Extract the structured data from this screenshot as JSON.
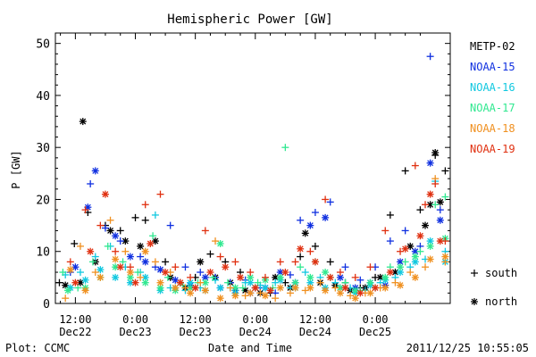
{
  "chart_data": {
    "type": "scatter",
    "title": "Hemispheric Power [GW]",
    "xlabel": "Date and Time",
    "ylabel": "P [GW]",
    "ylim": [
      0,
      52
    ],
    "xlim_hours": [
      -16,
      63
    ],
    "y_ticks": [
      "0",
      "10",
      "20",
      "30",
      "40",
      "50"
    ],
    "x_ticks": [
      {
        "time": "12:00",
        "date": "Dec22"
      },
      {
        "time": "0:00",
        "date": "Dec23"
      },
      {
        "time": "12:00",
        "date": "Dec23"
      },
      {
        "time": "0:00",
        "date": "Dec24"
      },
      {
        "time": "12:00",
        "date": "Dec24"
      },
      {
        "time": "0:00",
        "date": "Dec25"
      }
    ],
    "legend_position": "right",
    "marker_legend": [
      {
        "symbol": "+",
        "label": "south"
      },
      {
        "symbol": "*",
        "label": "north"
      }
    ],
    "series": [
      {
        "name": "METP-02",
        "color": "#000000",
        "south": [
          [
            -15.2,
            4
          ],
          [
            -12.2,
            11.5
          ],
          [
            -9.5,
            17.5
          ],
          [
            -6,
            15
          ],
          [
            -3,
            14
          ],
          [
            0,
            16.5
          ],
          [
            2,
            16
          ],
          [
            6,
            8
          ],
          [
            9,
            4
          ],
          [
            12,
            5
          ],
          [
            15,
            9.5
          ],
          [
            18,
            8
          ],
          [
            21,
            6
          ],
          [
            24,
            3
          ],
          [
            27,
            2
          ],
          [
            30,
            4
          ],
          [
            33,
            9
          ],
          [
            36,
            11
          ],
          [
            39,
            8
          ],
          [
            42,
            4
          ],
          [
            45,
            3
          ],
          [
            48,
            5
          ],
          [
            51,
            17
          ],
          [
            54,
            25.5
          ],
          [
            57,
            18
          ],
          [
            60,
            28.5
          ],
          [
            62,
            25.5
          ]
        ],
        "north": [
          [
            -14,
            3.5
          ],
          [
            -11,
            4
          ],
          [
            -10.5,
            35
          ],
          [
            -8,
            8
          ],
          [
            -5,
            14
          ],
          [
            -2,
            12
          ],
          [
            1,
            11
          ],
          [
            4,
            12
          ],
          [
            7,
            5
          ],
          [
            10,
            3
          ],
          [
            13,
            8
          ],
          [
            16,
            5
          ],
          [
            19,
            4
          ],
          [
            22,
            2.5
          ],
          [
            25,
            2
          ],
          [
            28,
            5
          ],
          [
            31,
            3
          ],
          [
            34,
            13.5
          ],
          [
            37,
            4
          ],
          [
            40,
            3.5
          ],
          [
            43,
            2.5
          ],
          [
            46,
            3
          ],
          [
            49,
            5
          ],
          [
            52,
            6
          ],
          [
            55,
            11
          ],
          [
            58,
            15
          ],
          [
            59,
            19
          ],
          [
            60,
            29
          ],
          [
            61,
            19.5
          ]
        ]
      },
      {
        "name": "NOAA-15",
        "color": "#1030e0",
        "south": [
          [
            -13,
            6
          ],
          [
            -9,
            23
          ],
          [
            -6,
            14.5
          ],
          [
            -3,
            12
          ],
          [
            1,
            9
          ],
          [
            4,
            7
          ],
          [
            7,
            15
          ],
          [
            10,
            7
          ],
          [
            13,
            6
          ],
          [
            16,
            5
          ],
          [
            19,
            4
          ],
          [
            22,
            4.5
          ],
          [
            25,
            3
          ],
          [
            28,
            2
          ],
          [
            31,
            5.5
          ],
          [
            33,
            16
          ],
          [
            36,
            17.5
          ],
          [
            39,
            19.5
          ],
          [
            42,
            7
          ],
          [
            45,
            4.5
          ],
          [
            48,
            7
          ],
          [
            51,
            12
          ],
          [
            54,
            14
          ],
          [
            57,
            11
          ],
          [
            59,
            47.5
          ],
          [
            61,
            18
          ]
        ],
        "north": [
          [
            -12,
            7
          ],
          [
            -9.5,
            18.5
          ],
          [
            -8,
            25.5
          ],
          [
            -4,
            13
          ],
          [
            -1,
            9
          ],
          [
            2,
            8
          ],
          [
            5,
            6.5
          ],
          [
            8,
            4.5
          ],
          [
            11,
            3.5
          ],
          [
            14,
            5
          ],
          [
            17,
            3
          ],
          [
            20,
            2.5
          ],
          [
            23,
            2
          ],
          [
            26,
            3
          ],
          [
            29,
            6
          ],
          [
            32,
            4
          ],
          [
            35,
            15
          ],
          [
            38,
            16.5
          ],
          [
            41,
            5
          ],
          [
            44,
            3
          ],
          [
            47,
            4
          ],
          [
            50,
            3.5
          ],
          [
            53,
            8
          ],
          [
            56,
            10
          ],
          [
            59,
            27
          ],
          [
            61,
            16
          ]
        ]
      },
      {
        "name": "NOAA-16",
        "color": "#10c8e0",
        "south": [
          [
            -14,
            5.5
          ],
          [
            -11,
            6
          ],
          [
            -8,
            9
          ],
          [
            -5,
            11
          ],
          [
            -2,
            7
          ],
          [
            1,
            6
          ],
          [
            4,
            17
          ],
          [
            7,
            3
          ],
          [
            10,
            2.5
          ],
          [
            13,
            3
          ],
          [
            16,
            4.5
          ],
          [
            19,
            3
          ],
          [
            22,
            4
          ],
          [
            25,
            3.5
          ],
          [
            28,
            4
          ],
          [
            31,
            3
          ],
          [
            34,
            6
          ],
          [
            37,
            5
          ],
          [
            40,
            4
          ],
          [
            43,
            3
          ],
          [
            46,
            2.5
          ],
          [
            49,
            4
          ],
          [
            52,
            5
          ],
          [
            55,
            7
          ],
          [
            58,
            8.5
          ],
          [
            60,
            23.5
          ],
          [
            62,
            10
          ]
        ],
        "north": [
          [
            -13,
            3
          ],
          [
            -10,
            4.5
          ],
          [
            -7,
            6.5
          ],
          [
            -4,
            5
          ],
          [
            -1,
            4
          ],
          [
            2,
            5
          ],
          [
            5,
            2.5
          ],
          [
            8,
            3
          ],
          [
            11,
            4
          ],
          [
            14,
            2.5
          ],
          [
            17,
            3
          ],
          [
            20,
            2
          ],
          [
            23,
            4
          ],
          [
            26,
            3
          ],
          [
            29,
            4.5
          ],
          [
            32,
            3
          ],
          [
            35,
            4
          ],
          [
            38,
            3
          ],
          [
            41,
            3
          ],
          [
            44,
            2
          ],
          [
            47,
            3.5
          ],
          [
            50,
            4.5
          ],
          [
            53,
            6
          ],
          [
            56,
            8
          ],
          [
            59,
            12
          ],
          [
            62,
            8
          ]
        ]
      },
      {
        "name": "NOAA-17",
        "color": "#30e890",
        "south": [
          [
            -14.5,
            6
          ],
          [
            -11.5,
            3
          ],
          [
            -8.5,
            8
          ],
          [
            -5.5,
            11
          ],
          [
            -2.5,
            8
          ],
          [
            0.5,
            6
          ],
          [
            3.5,
            13
          ],
          [
            6.5,
            5
          ],
          [
            9.5,
            3.5
          ],
          [
            12.5,
            4
          ],
          [
            15.5,
            5
          ],
          [
            18.5,
            4
          ],
          [
            21.5,
            3
          ],
          [
            24.5,
            4
          ],
          [
            27.5,
            3
          ],
          [
            30,
            30
          ],
          [
            33,
            7
          ],
          [
            36,
            8
          ],
          [
            39,
            5
          ],
          [
            42,
            4
          ],
          [
            45,
            2.5
          ],
          [
            48,
            3
          ],
          [
            51,
            7
          ],
          [
            54,
            8
          ],
          [
            57,
            10
          ],
          [
            60,
            19
          ],
          [
            62,
            20.5
          ]
        ],
        "north": [
          [
            -13.5,
            2.5
          ],
          [
            -10,
            3
          ],
          [
            -7,
            5
          ],
          [
            -4,
            7
          ],
          [
            -1,
            5
          ],
          [
            2,
            4
          ],
          [
            5,
            3
          ],
          [
            8,
            2.5
          ],
          [
            11,
            3
          ],
          [
            14,
            4
          ],
          [
            17,
            11.5
          ],
          [
            20,
            3
          ],
          [
            23,
            5
          ],
          [
            26,
            4.5
          ],
          [
            29,
            5
          ],
          [
            32,
            4
          ],
          [
            35,
            5
          ],
          [
            38,
            6
          ],
          [
            41,
            3
          ],
          [
            44,
            2.5
          ],
          [
            47,
            4
          ],
          [
            50,
            5
          ],
          [
            53,
            7
          ],
          [
            56,
            9
          ],
          [
            59,
            11
          ],
          [
            62,
            12.5
          ]
        ]
      },
      {
        "name": "NOAA-18",
        "color": "#f09020",
        "south": [
          [
            -14,
            1
          ],
          [
            -11,
            11
          ],
          [
            -8,
            6
          ],
          [
            -5,
            16
          ],
          [
            -2,
            10
          ],
          [
            1,
            5
          ],
          [
            4,
            8
          ],
          [
            7,
            6
          ],
          [
            10,
            3
          ],
          [
            13,
            4
          ],
          [
            16,
            12
          ],
          [
            19,
            3
          ],
          [
            22,
            1.5
          ],
          [
            25,
            2
          ],
          [
            28,
            1
          ],
          [
            31,
            2
          ],
          [
            34,
            2.5
          ],
          [
            37,
            4
          ],
          [
            40,
            3
          ],
          [
            43,
            1.5
          ],
          [
            46,
            2
          ],
          [
            49,
            3
          ],
          [
            52,
            4
          ],
          [
            55,
            6
          ],
          [
            58,
            7
          ],
          [
            60,
            24
          ],
          [
            62,
            8
          ]
        ],
        "north": [
          [
            -13,
            6.5
          ],
          [
            -10,
            2.5
          ],
          [
            -7,
            5
          ],
          [
            -4,
            8.5
          ],
          [
            -1,
            6
          ],
          [
            2,
            10
          ],
          [
            5,
            4
          ],
          [
            8,
            3
          ],
          [
            11,
            2
          ],
          [
            14,
            2.5
          ],
          [
            17,
            1
          ],
          [
            20,
            1.5
          ],
          [
            23,
            2
          ],
          [
            26,
            1.5
          ],
          [
            29,
            3
          ],
          [
            32,
            3
          ],
          [
            35,
            3
          ],
          [
            38,
            2.5
          ],
          [
            41,
            2
          ],
          [
            44,
            1
          ],
          [
            47,
            2
          ],
          [
            50,
            3
          ],
          [
            53,
            3.5
          ],
          [
            56,
            5
          ],
          [
            59,
            8.5
          ],
          [
            62,
            9
          ]
        ]
      },
      {
        "name": "NOAA-19",
        "color": "#e03010",
        "south": [
          [
            -13,
            8
          ],
          [
            -10,
            18
          ],
          [
            -7,
            15
          ],
          [
            -4,
            10
          ],
          [
            -1,
            7
          ],
          [
            2,
            19
          ],
          [
            5,
            21
          ],
          [
            8,
            7
          ],
          [
            11,
            5
          ],
          [
            14,
            14
          ],
          [
            17,
            9
          ],
          [
            20,
            8
          ],
          [
            23,
            6
          ],
          [
            26,
            5
          ],
          [
            29,
            8
          ],
          [
            32,
            8
          ],
          [
            35,
            10
          ],
          [
            38,
            20
          ],
          [
            41,
            6
          ],
          [
            44,
            5
          ],
          [
            47,
            7
          ],
          [
            50,
            14
          ],
          [
            53,
            10
          ],
          [
            56,
            26.5
          ],
          [
            58,
            19
          ],
          [
            60,
            23
          ],
          [
            62,
            12
          ]
        ],
        "north": [
          [
            -12,
            4
          ],
          [
            -9,
            10
          ],
          [
            -6,
            21
          ],
          [
            -3,
            7
          ],
          [
            0,
            4
          ],
          [
            3,
            11.5
          ],
          [
            6,
            6
          ],
          [
            9,
            4
          ],
          [
            12,
            3
          ],
          [
            15,
            6
          ],
          [
            18,
            7
          ],
          [
            21,
            5
          ],
          [
            24,
            3
          ],
          [
            27,
            2.5
          ],
          [
            30,
            6
          ],
          [
            33,
            10.5
          ],
          [
            36,
            8
          ],
          [
            39,
            5
          ],
          [
            42,
            3
          ],
          [
            45,
            2
          ],
          [
            48,
            3
          ],
          [
            51,
            6
          ],
          [
            54,
            10.5
          ],
          [
            57,
            13
          ],
          [
            59,
            21
          ],
          [
            61,
            12
          ]
        ]
      }
    ]
  },
  "footer": {
    "left": "Plot: CCMC",
    "center": "Date and Time",
    "right": "2011/12/25 10:55:05"
  }
}
